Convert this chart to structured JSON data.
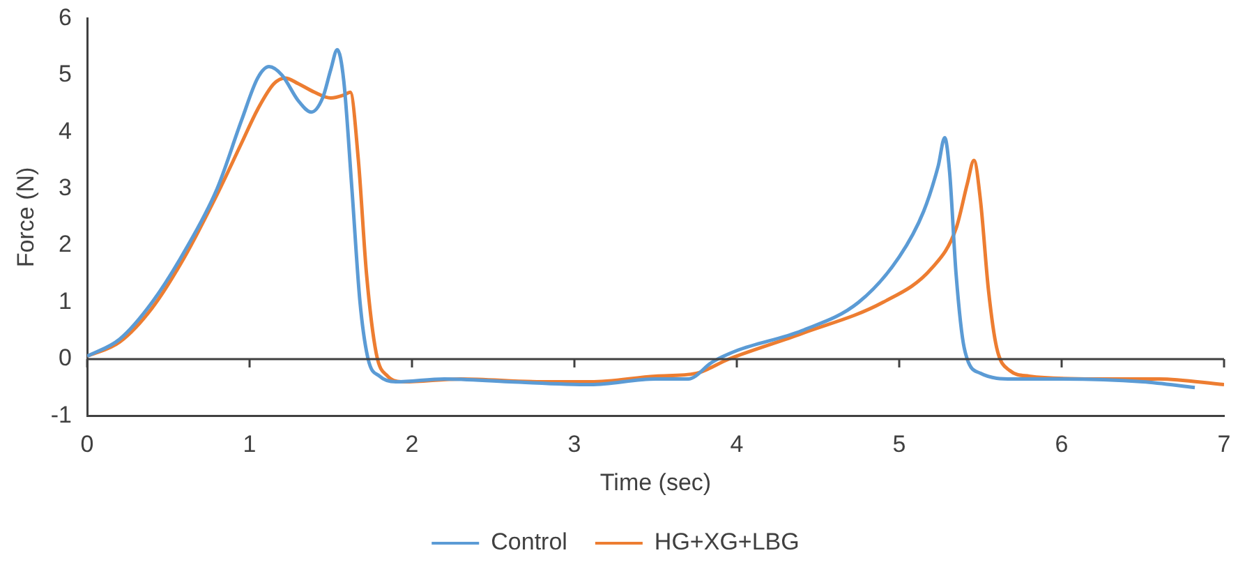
{
  "chart_data": {
    "type": "line",
    "xlabel": "Time (sec)",
    "ylabel": "Force (N)",
    "xlim": [
      0,
      7
    ],
    "xticks": [
      0,
      1,
      2,
      3,
      4,
      5,
      6,
      7
    ],
    "ylim": [
      -1,
      6
    ],
    "yticks": [
      -1,
      0,
      1,
      2,
      3,
      4,
      5,
      6
    ],
    "legend": "bottom",
    "marker": "none",
    "series": [
      {
        "name": "Control",
        "color": "#5b9bd5",
        "x": [
          0,
          0.2,
          0.4,
          0.6,
          0.8,
          0.95,
          1.05,
          1.12,
          1.2,
          1.3,
          1.38,
          1.45,
          1.5,
          1.54,
          1.58,
          1.63,
          1.68,
          1.73,
          1.8,
          1.9,
          2.2,
          2.6,
          3.1,
          3.5,
          3.7,
          3.85,
          4.0,
          4.4,
          4.75,
          5.0,
          5.15,
          5.24,
          5.28,
          5.31,
          5.35,
          5.4,
          5.5,
          5.7,
          6.0,
          6.5,
          6.82
        ],
        "values": [
          0.05,
          0.35,
          1.0,
          1.9,
          3.0,
          4.2,
          4.95,
          5.15,
          5.0,
          4.55,
          4.35,
          4.6,
          5.1,
          5.45,
          4.9,
          3.0,
          1.0,
          0.0,
          -0.3,
          -0.4,
          -0.35,
          -0.4,
          -0.45,
          -0.35,
          -0.35,
          -0.05,
          0.15,
          0.5,
          1.0,
          1.8,
          2.6,
          3.4,
          3.9,
          3.3,
          1.5,
          0.2,
          -0.25,
          -0.35,
          -0.35,
          -0.4,
          -0.5
        ]
      },
      {
        "name": "HG+XG+LBG",
        "color": "#ed7d31",
        "x": [
          0,
          0.2,
          0.4,
          0.6,
          0.8,
          0.95,
          1.05,
          1.15,
          1.22,
          1.3,
          1.4,
          1.5,
          1.58,
          1.62,
          1.67,
          1.72,
          1.78,
          1.85,
          1.95,
          2.3,
          2.8,
          3.1,
          3.5,
          3.75,
          3.95,
          4.4,
          4.9,
          5.2,
          5.35,
          5.42,
          5.46,
          5.5,
          5.55,
          5.6,
          5.68,
          5.8,
          6.2,
          6.6,
          7.0
        ],
        "values": [
          0.05,
          0.3,
          0.9,
          1.8,
          2.9,
          3.8,
          4.4,
          4.85,
          4.95,
          4.85,
          4.7,
          4.6,
          4.65,
          4.7,
          3.5,
          1.5,
          0.1,
          -0.3,
          -0.4,
          -0.35,
          -0.4,
          -0.4,
          -0.3,
          -0.25,
          0.0,
          0.45,
          1.0,
          1.6,
          2.3,
          3.1,
          3.5,
          2.8,
          1.2,
          0.2,
          -0.2,
          -0.3,
          -0.35,
          -0.35,
          -0.45
        ]
      }
    ]
  }
}
